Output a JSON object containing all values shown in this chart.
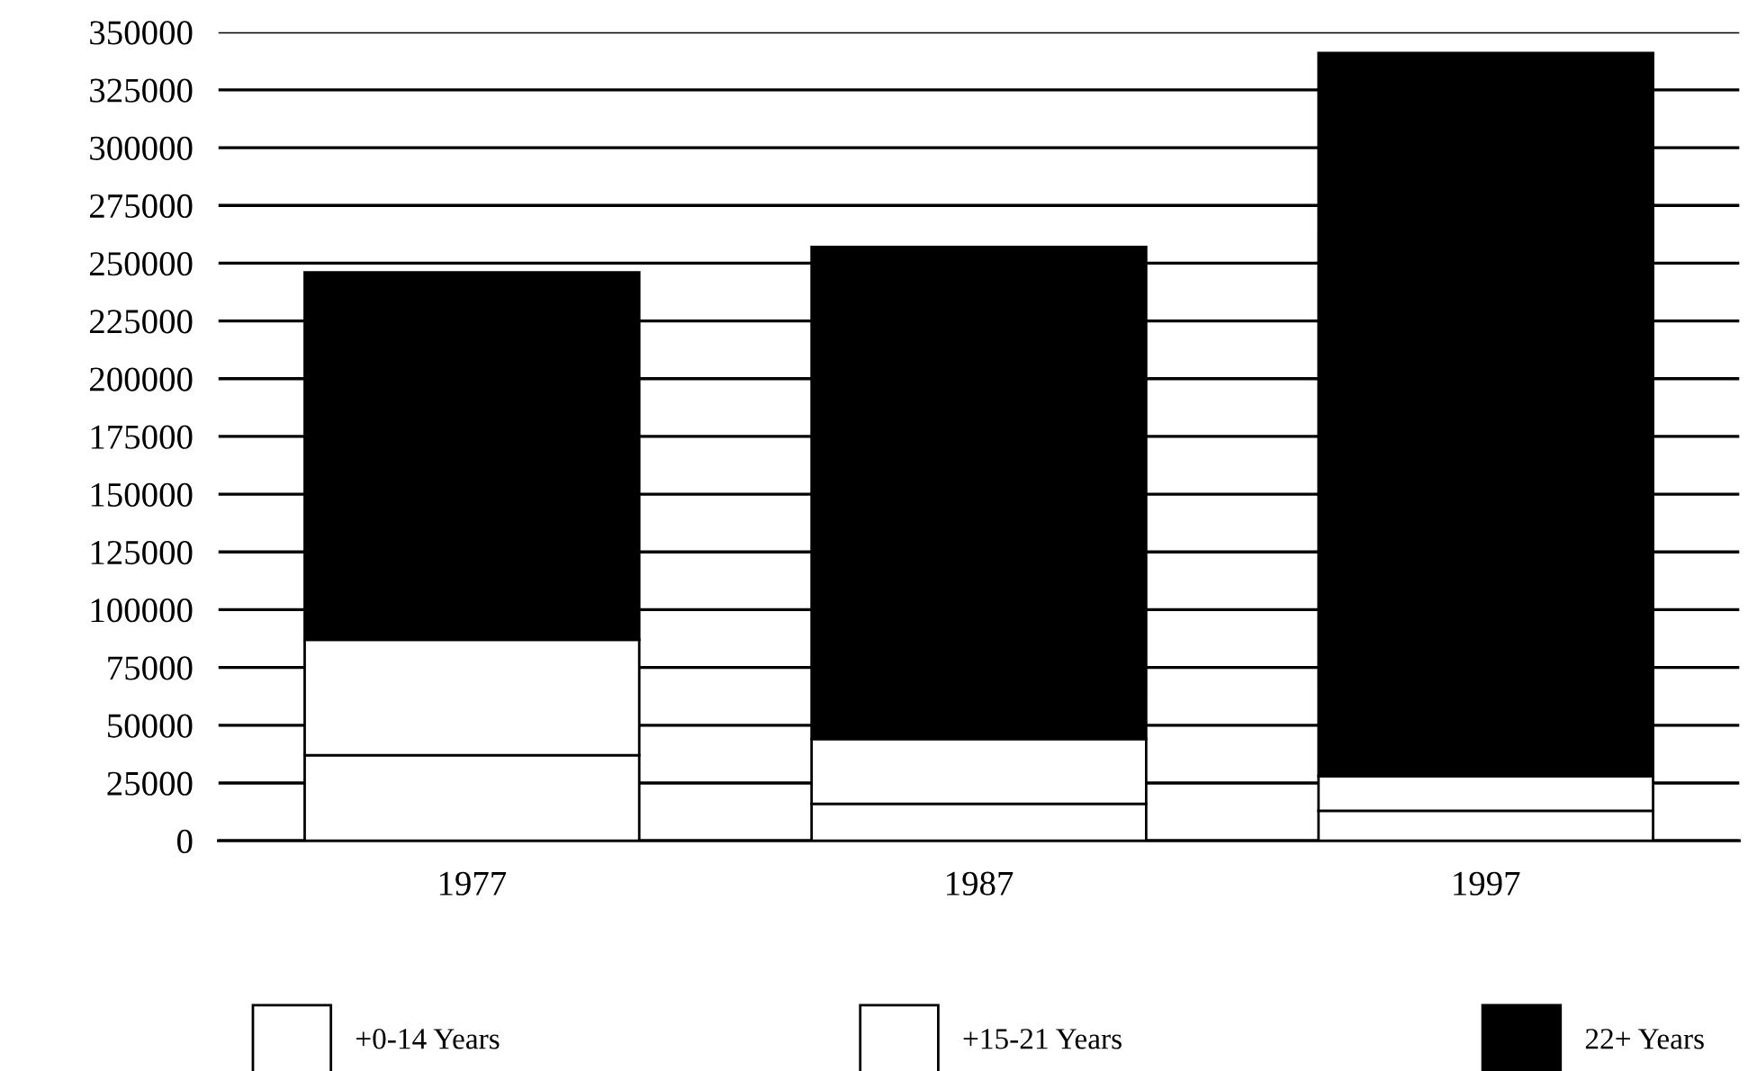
{
  "chart_data": {
    "type": "bar",
    "stacked": true,
    "categories": [
      "1977",
      "1987",
      "1997"
    ],
    "series": [
      {
        "name": "+0-14 Years",
        "color": "#ffffff",
        "values": [
          37000,
          16000,
          13000
        ]
      },
      {
        "name": "+15-21 Years",
        "color": "#ffffff",
        "values": [
          50000,
          28000,
          15000
        ]
      },
      {
        "name": "22+ Years",
        "color": "#000000",
        "values": [
          159000,
          213000,
          313000
        ]
      }
    ],
    "ylim": [
      0,
      350000
    ],
    "yticks": [
      0,
      25000,
      50000,
      75000,
      100000,
      125000,
      150000,
      175000,
      200000,
      225000,
      250000,
      275000,
      300000,
      325000,
      350000
    ],
    "grid": "y",
    "legend": "bottom"
  }
}
